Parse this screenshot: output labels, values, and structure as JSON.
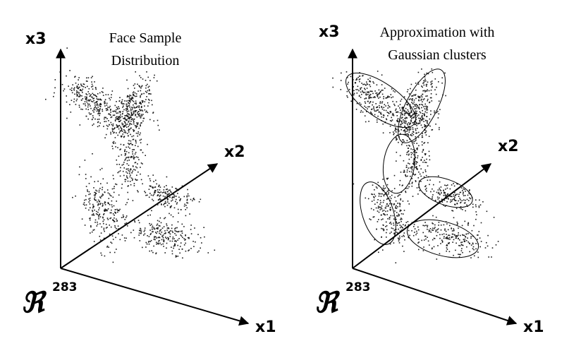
{
  "left_panel": {
    "title_line1": "Face Sample",
    "title_line2": "Distribution",
    "axes": {
      "x1": "x1",
      "x2": "x2",
      "x3": "x3"
    },
    "space_symbol": "ℜ",
    "space_dimension": "283"
  },
  "right_panel": {
    "title_line1": "Approximation with",
    "title_line2": "Gaussian clusters",
    "axes": {
      "x1": "x1",
      "x2": "x2",
      "x3": "x3"
    },
    "space_symbol": "ℜ",
    "space_dimension": "283"
  },
  "colors": {
    "ink": "#000000",
    "background": "#ffffff",
    "dots": "#1a1a1a"
  }
}
